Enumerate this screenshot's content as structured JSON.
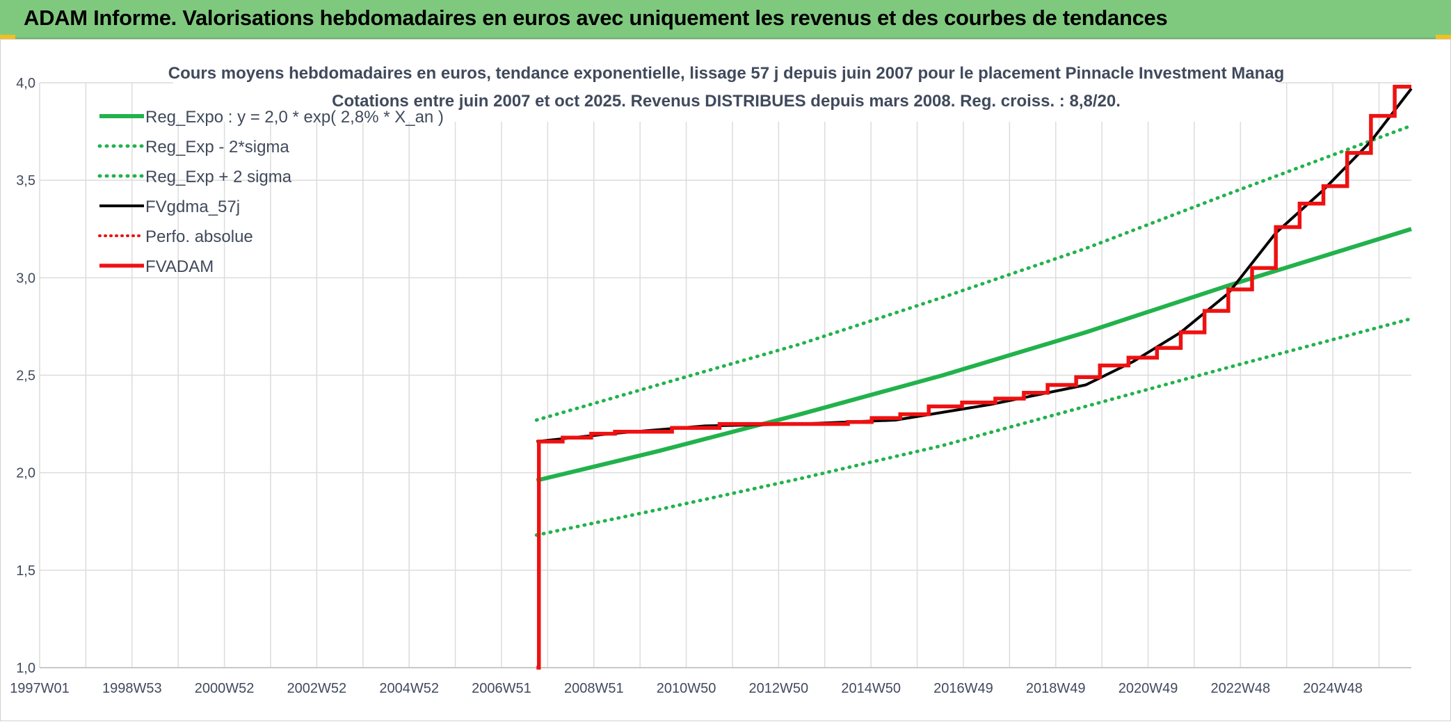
{
  "header": {
    "title": "ADAM Informe. Valorisations hebdomadaires en euros avec uniquement les revenus et des courbes de tendances"
  },
  "chart_data": {
    "type": "line",
    "title": "Cours moyens hebdomadaires en euros, tendance exponentielle, lissage 57 j depuis juin 2007 pour le placement Pinnacle Investment Manag",
    "subtitle": "Cotations entre juin 2007 et oct 2025. Revenus DISTRIBUES depuis mars 2008. Reg. croiss. : 8,8/20.",
    "x_ticks": [
      "1997W01",
      "1998W53",
      "2000W52",
      "2002W52",
      "2004W52",
      "2006W51",
      "2008W51",
      "2010W50",
      "2012W50",
      "2014W50",
      "2016W49",
      "2018W49",
      "2020W49",
      "2022W48",
      "2024W48"
    ],
    "y_ticks": [
      "1,0",
      "1,5",
      "2,0",
      "2,5",
      "3,0",
      "3,5",
      "4,0"
    ],
    "ylim": [
      1.0,
      4.0
    ],
    "xlim": [
      1997.0,
      2025.85
    ],
    "grid": true,
    "legend_position": "top-left",
    "colors": {
      "green": "#22b24c",
      "black": "#000000",
      "red": "#ee1111"
    },
    "series": [
      {
        "name": "Reg_Expo : y = 2,0 * exp( 2,8% *  X_an )",
        "style": "solid-green",
        "x": [
          2007.45,
          2010,
          2013,
          2016,
          2019,
          2022,
          2025.85
        ],
        "y": [
          1.96,
          2.11,
          2.3,
          2.5,
          2.72,
          2.96,
          3.25
        ]
      },
      {
        "name": "Reg_Exp - 2*sigma",
        "style": "dotted-green",
        "x": [
          2007.45,
          2010,
          2013,
          2016,
          2019,
          2022,
          2025.85
        ],
        "y": [
          1.68,
          1.81,
          1.97,
          2.14,
          2.34,
          2.54,
          2.79
        ]
      },
      {
        "name": "Reg_Exp + 2 sigma",
        "style": "dotted-green",
        "x": [
          2007.45,
          2010,
          2013,
          2016,
          2019,
          2022,
          2025.85
        ],
        "y": [
          2.27,
          2.45,
          2.66,
          2.9,
          3.15,
          3.43,
          3.78
        ]
      },
      {
        "name": "FVgdma_57j",
        "style": "solid-black",
        "x": [
          2007.45,
          2009,
          2011,
          2013,
          2015,
          2017,
          2019,
          2020,
          2021,
          2022,
          2023,
          2024,
          2025,
          2025.85
        ],
        "y": [
          2.16,
          2.2,
          2.24,
          2.25,
          2.27,
          2.35,
          2.45,
          2.57,
          2.72,
          2.92,
          3.23,
          3.45,
          3.7,
          3.97
        ]
      },
      {
        "name": "Perfo. absolue",
        "style": "dotted-red",
        "x": [],
        "y": []
      },
      {
        "name": "FVADAM",
        "style": "step-red",
        "x": [
          2007.45,
          2007.5,
          2008.0,
          2008.6,
          2009.1,
          2010.3,
          2011.3,
          2014.0,
          2014.5,
          2015.1,
          2015.7,
          2016.4,
          2017.1,
          2017.7,
          2018.2,
          2018.8,
          2019.3,
          2019.9,
          2020.5,
          2021.0,
          2021.5,
          2022.0,
          2022.5,
          2023.0,
          2023.5,
          2024.0,
          2024.5,
          2025.0,
          2025.5,
          2025.85
        ],
        "y": [
          1.0,
          2.16,
          2.18,
          2.2,
          2.21,
          2.23,
          2.25,
          2.26,
          2.28,
          2.3,
          2.34,
          2.36,
          2.38,
          2.41,
          2.45,
          2.49,
          2.55,
          2.59,
          2.64,
          2.72,
          2.83,
          2.94,
          3.05,
          3.26,
          3.38,
          3.47,
          3.64,
          3.83,
          3.98,
          3.98
        ]
      }
    ]
  }
}
